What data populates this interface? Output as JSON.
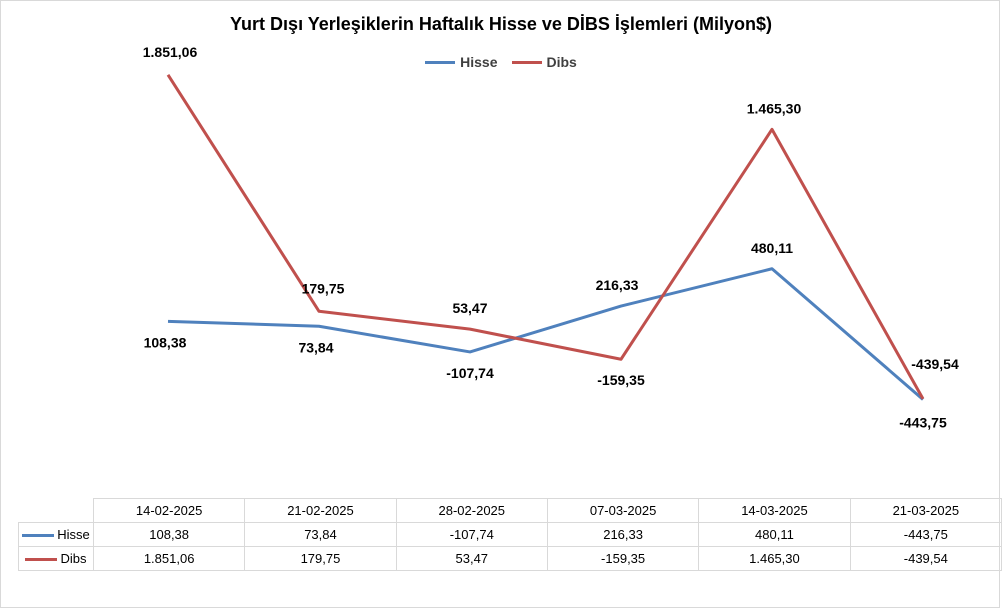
{
  "chart_data": {
    "type": "line",
    "title": "Yurt Dışı Yerleşiklerin Haftalık Hisse ve DİBS İşlemleri (Milyon$)",
    "categories": [
      "14-02-2025",
      "21-02-2025",
      "28-02-2025",
      "07-03-2025",
      "14-03-2025",
      "21-03-2025"
    ],
    "series": [
      {
        "name": "Hisse",
        "color": "#4f81bd",
        "values": [
          108.38,
          73.84,
          -107.74,
          216.33,
          480.11,
          -443.75
        ],
        "labels": [
          "108,38",
          "73,84",
          "-107,74",
          "216,33",
          "480,11",
          "-443,75"
        ],
        "table_values": [
          "108,38",
          "73,84",
          "-107,74",
          "216,33",
          "480,11",
          "-443,75"
        ]
      },
      {
        "name": "Dibs",
        "color": "#c0504d",
        "values": [
          1851.06,
          179.75,
          53.47,
          -159.35,
          1465.3,
          -439.54
        ],
        "labels": [
          "1.851,06",
          "179,75",
          "53,47",
          "-159,35",
          "1.465,30",
          "-439,54"
        ],
        "table_values": [
          "1.851,06",
          "179,75",
          "53,47",
          "-159,35",
          "1.465,30",
          "-439,54"
        ]
      }
    ],
    "legend_position": "top",
    "grid": false,
    "data_table": true
  }
}
